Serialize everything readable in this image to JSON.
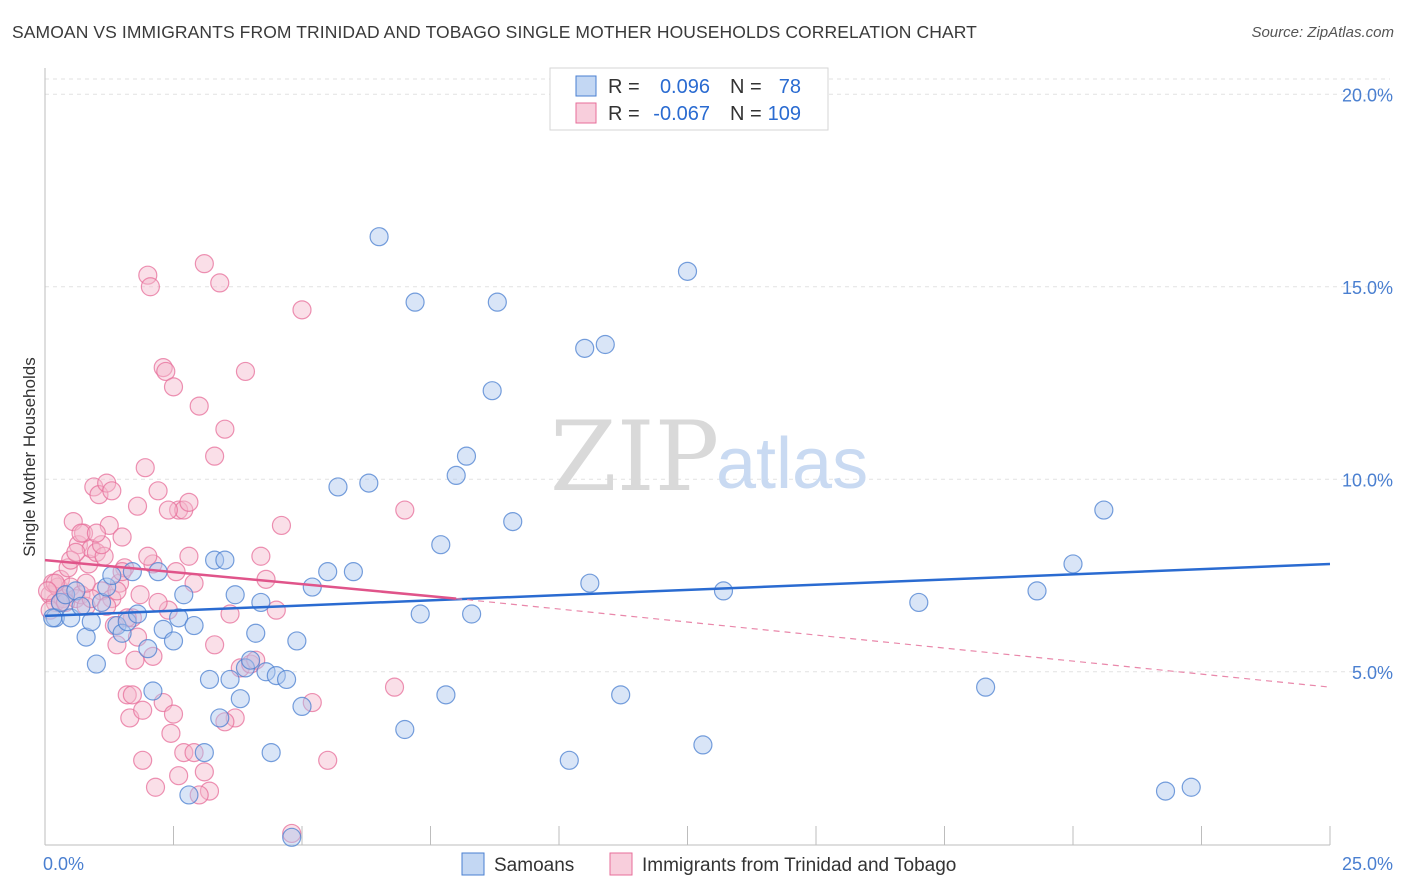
{
  "header": {
    "title": "SAMOAN VS IMMIGRANTS FROM TRINIDAD AND TOBAGO SINGLE MOTHER HOUSEHOLDS CORRELATION CHART",
    "source": "Source: ZipAtlas.com"
  },
  "watermark": {
    "zip": "ZIP",
    "atlas": "atlas"
  },
  "stats_legend": [
    {
      "r_label": "R =",
      "r_value": "0.096",
      "n_label": "N =",
      "n_value": "78",
      "color": "#4a7fd0"
    },
    {
      "r_label": "R =",
      "r_value": "-0.067",
      "n_label": "N =",
      "n_value": "109",
      "color": "#e76e9a"
    }
  ],
  "chart_data": {
    "type": "scatter",
    "ylabel": "Single Mother Households",
    "xlabel": "",
    "x_tick_labels": [
      "0.0%",
      "25.0%"
    ],
    "y_tick_labels": [
      "5.0%",
      "10.0%",
      "15.0%",
      "20.0%"
    ],
    "y_ticks": [
      5,
      10,
      15,
      20
    ],
    "xlim": [
      0,
      25
    ],
    "ylim": [
      0.5,
      20.5
    ],
    "grid": true,
    "legend_position": "bottom",
    "series": [
      {
        "name": "Samoans",
        "color": "#4a7fd0",
        "fill": "#aac6ee",
        "trend": {
          "x": [
            0,
            25
          ],
          "y": [
            6.45,
            7.8
          ]
        },
        "points": [
          [
            0.2,
            6.4
          ],
          [
            0.3,
            6.8
          ],
          [
            0.4,
            7.0
          ],
          [
            0.5,
            6.4
          ],
          [
            0.6,
            7.1
          ],
          [
            0.7,
            6.7
          ],
          [
            0.8,
            5.9
          ],
          [
            0.9,
            6.3
          ],
          [
            1.0,
            5.2
          ],
          [
            1.1,
            6.8
          ],
          [
            1.2,
            7.2
          ],
          [
            1.3,
            7.5
          ],
          [
            1.4,
            6.2
          ],
          [
            1.5,
            6.0
          ],
          [
            1.6,
            6.3
          ],
          [
            1.7,
            7.6
          ],
          [
            1.8,
            6.5
          ],
          [
            2.0,
            5.6
          ],
          [
            2.1,
            4.5
          ],
          [
            2.2,
            7.6
          ],
          [
            2.3,
            6.1
          ],
          [
            2.5,
            5.8
          ],
          [
            2.6,
            6.4
          ],
          [
            2.7,
            7.0
          ],
          [
            2.8,
            1.8
          ],
          [
            2.9,
            6.2
          ],
          [
            3.1,
            2.9
          ],
          [
            3.2,
            4.8
          ],
          [
            3.3,
            7.9
          ],
          [
            3.4,
            3.8
          ],
          [
            3.5,
            7.9
          ],
          [
            3.6,
            4.8
          ],
          [
            3.7,
            7.0
          ],
          [
            3.8,
            4.3
          ],
          [
            3.9,
            5.1
          ],
          [
            4.0,
            5.3
          ],
          [
            4.1,
            6.0
          ],
          [
            4.2,
            6.8
          ],
          [
            4.3,
            5.0
          ],
          [
            4.4,
            2.9
          ],
          [
            4.5,
            4.9
          ],
          [
            4.7,
            4.8
          ],
          [
            4.8,
            0.7
          ],
          [
            4.9,
            5.8
          ],
          [
            5.0,
            4.1
          ],
          [
            5.2,
            7.2
          ],
          [
            5.5,
            7.6
          ],
          [
            5.7,
            9.8
          ],
          [
            6.0,
            7.6
          ],
          [
            6.3,
            9.9
          ],
          [
            6.5,
            16.3
          ],
          [
            7.0,
            3.5
          ],
          [
            7.2,
            14.6
          ],
          [
            7.3,
            6.5
          ],
          [
            7.7,
            8.3
          ],
          [
            7.8,
            4.4
          ],
          [
            8.0,
            10.1
          ],
          [
            8.2,
            10.6
          ],
          [
            8.3,
            6.5
          ],
          [
            8.7,
            12.3
          ],
          [
            8.8,
            14.6
          ],
          [
            9.1,
            8.9
          ],
          [
            10.2,
            2.7
          ],
          [
            10.5,
            13.4
          ],
          [
            10.6,
            7.3
          ],
          [
            10.9,
            13.5
          ],
          [
            11.2,
            4.4
          ],
          [
            12.5,
            15.4
          ],
          [
            12.8,
            3.1
          ],
          [
            13.2,
            7.1
          ],
          [
            17.0,
            6.8
          ],
          [
            18.3,
            4.6
          ],
          [
            19.3,
            7.1
          ],
          [
            20.0,
            7.8
          ],
          [
            20.6,
            9.2
          ],
          [
            21.8,
            1.9
          ],
          [
            22.3,
            2.0
          ],
          [
            0.15,
            6.4
          ]
        ]
      },
      {
        "name": "Immigrants from Trinidad and Tobago",
        "color": "#e76e9a",
        "fill": "#f5b9cd",
        "trend": {
          "x": [
            0,
            8
          ],
          "y": [
            7.9,
            6.9
          ]
        },
        "trend_extended": {
          "x": [
            8,
            25
          ],
          "y": [
            6.9,
            4.6
          ]
        },
        "points": [
          [
            0.1,
            7.0
          ],
          [
            0.15,
            7.3
          ],
          [
            0.2,
            6.8
          ],
          [
            0.25,
            7.2
          ],
          [
            0.3,
            7.4
          ],
          [
            0.35,
            6.9
          ],
          [
            0.4,
            7.0
          ],
          [
            0.45,
            7.7
          ],
          [
            0.5,
            7.2
          ],
          [
            0.55,
            8.9
          ],
          [
            0.6,
            6.9
          ],
          [
            0.65,
            8.3
          ],
          [
            0.7,
            7.0
          ],
          [
            0.75,
            8.6
          ],
          [
            0.8,
            6.7
          ],
          [
            0.85,
            7.8
          ],
          [
            0.9,
            8.2
          ],
          [
            0.95,
            9.8
          ],
          [
            1.0,
            8.1
          ],
          [
            1.05,
            9.6
          ],
          [
            1.1,
            7.1
          ],
          [
            1.15,
            8.0
          ],
          [
            1.2,
            9.9
          ],
          [
            1.25,
            8.8
          ],
          [
            1.3,
            6.9
          ],
          [
            1.35,
            6.2
          ],
          [
            1.4,
            5.7
          ],
          [
            1.45,
            7.3
          ],
          [
            1.5,
            8.5
          ],
          [
            1.55,
            7.7
          ],
          [
            1.6,
            4.4
          ],
          [
            1.65,
            3.8
          ],
          [
            1.7,
            6.4
          ],
          [
            1.75,
            5.3
          ],
          [
            1.8,
            9.3
          ],
          [
            1.85,
            7.0
          ],
          [
            1.9,
            2.7
          ],
          [
            1.95,
            10.3
          ],
          [
            2.0,
            15.3
          ],
          [
            2.05,
            15.0
          ],
          [
            2.1,
            7.8
          ],
          [
            2.15,
            2.0
          ],
          [
            2.2,
            9.7
          ],
          [
            2.3,
            12.9
          ],
          [
            2.35,
            12.8
          ],
          [
            2.4,
            6.6
          ],
          [
            2.45,
            3.4
          ],
          [
            2.5,
            12.4
          ],
          [
            2.55,
            7.6
          ],
          [
            2.6,
            9.2
          ],
          [
            2.7,
            2.9
          ],
          [
            2.8,
            8.0
          ],
          [
            2.9,
            7.3
          ],
          [
            3.0,
            11.9
          ],
          [
            3.1,
            15.6
          ],
          [
            3.2,
            1.9
          ],
          [
            3.3,
            10.6
          ],
          [
            3.4,
            15.1
          ],
          [
            3.5,
            11.3
          ],
          [
            3.6,
            6.5
          ],
          [
            3.7,
            3.8
          ],
          [
            3.8,
            5.1
          ],
          [
            3.9,
            12.8
          ],
          [
            4.0,
            5.2
          ],
          [
            4.1,
            5.3
          ],
          [
            4.2,
            8.0
          ],
          [
            4.3,
            7.4
          ],
          [
            4.5,
            6.6
          ],
          [
            4.6,
            8.8
          ],
          [
            4.8,
            0.8
          ],
          [
            5.0,
            14.4
          ],
          [
            5.2,
            4.2
          ],
          [
            5.5,
            2.7
          ],
          [
            6.8,
            4.6
          ],
          [
            7.0,
            9.2
          ],
          [
            0.1,
            6.6
          ],
          [
            0.2,
            7.3
          ],
          [
            0.3,
            6.8
          ],
          [
            0.5,
            7.9
          ],
          [
            0.7,
            8.6
          ],
          [
            0.9,
            6.9
          ],
          [
            1.1,
            8.3
          ],
          [
            1.3,
            9.7
          ],
          [
            1.5,
            7.6
          ],
          [
            1.7,
            4.4
          ],
          [
            1.9,
            4.0
          ],
          [
            2.1,
            5.4
          ],
          [
            2.3,
            4.2
          ],
          [
            2.5,
            3.9
          ],
          [
            2.7,
            9.2
          ],
          [
            2.9,
            2.9
          ],
          [
            3.1,
            2.4
          ],
          [
            3.3,
            5.7
          ],
          [
            3.5,
            3.7
          ],
          [
            1.2,
            6.7
          ],
          [
            0.4,
            6.8
          ],
          [
            0.6,
            8.1
          ],
          [
            0.8,
            7.3
          ],
          [
            1.0,
            8.6
          ],
          [
            1.4,
            7.1
          ],
          [
            1.6,
            6.4
          ],
          [
            1.8,
            5.9
          ],
          [
            2.0,
            8.0
          ],
          [
            2.2,
            6.8
          ],
          [
            2.4,
            9.2
          ],
          [
            2.6,
            2.3
          ],
          [
            2.8,
            9.4
          ],
          [
            3.0,
            1.8
          ],
          [
            0.05,
            7.1
          ]
        ]
      }
    ]
  }
}
